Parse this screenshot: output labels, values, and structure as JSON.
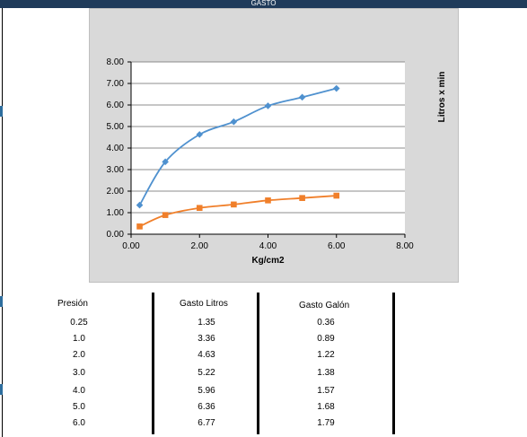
{
  "header": {
    "title": "GASTO"
  },
  "table": {
    "headers": [
      "Presión",
      "Gasto Litros",
      "Gasto Galón"
    ],
    "rows": [
      [
        "0.25",
        "1.35",
        "0.36"
      ],
      [
        "1.0",
        "3.36",
        "0.89"
      ],
      [
        "2.0",
        "4.63",
        "1.22"
      ],
      [
        "3.0",
        "5.22",
        "1.38"
      ],
      [
        "4.0",
        "5.96",
        "1.57"
      ],
      [
        "5.0",
        "6.36",
        "1.68"
      ],
      [
        "6.0",
        "6.77",
        "1.79"
      ]
    ]
  },
  "chart_data": {
    "type": "scatter",
    "title": "",
    "xlabel": "Kg/cm2",
    "ylabel": "Litros x min",
    "xlim": [
      0,
      8
    ],
    "ylim": [
      0,
      8
    ],
    "xticks": [
      "0.00",
      "2.00",
      "4.00",
      "6.00",
      "8.00"
    ],
    "yticks": [
      "0.00",
      "1.00",
      "2.00",
      "3.00",
      "4.00",
      "5.00",
      "6.00",
      "7.00",
      "8.00"
    ],
    "grid": "horizontal",
    "series": [
      {
        "x": [
          0.25,
          1,
          2,
          3,
          4,
          5,
          6
        ],
        "values": [
          1.35,
          3.36,
          4.63,
          5.22,
          5.96,
          6.36,
          6.77
        ],
        "color": "#4f91cf",
        "marker": "diamond"
      },
      {
        "x": [
          0.25,
          1,
          2,
          3,
          4,
          5,
          6
        ],
        "values": [
          0.36,
          0.89,
          1.22,
          1.38,
          1.57,
          1.68,
          1.79
        ],
        "color": "#f07f2a",
        "marker": "square"
      }
    ]
  }
}
